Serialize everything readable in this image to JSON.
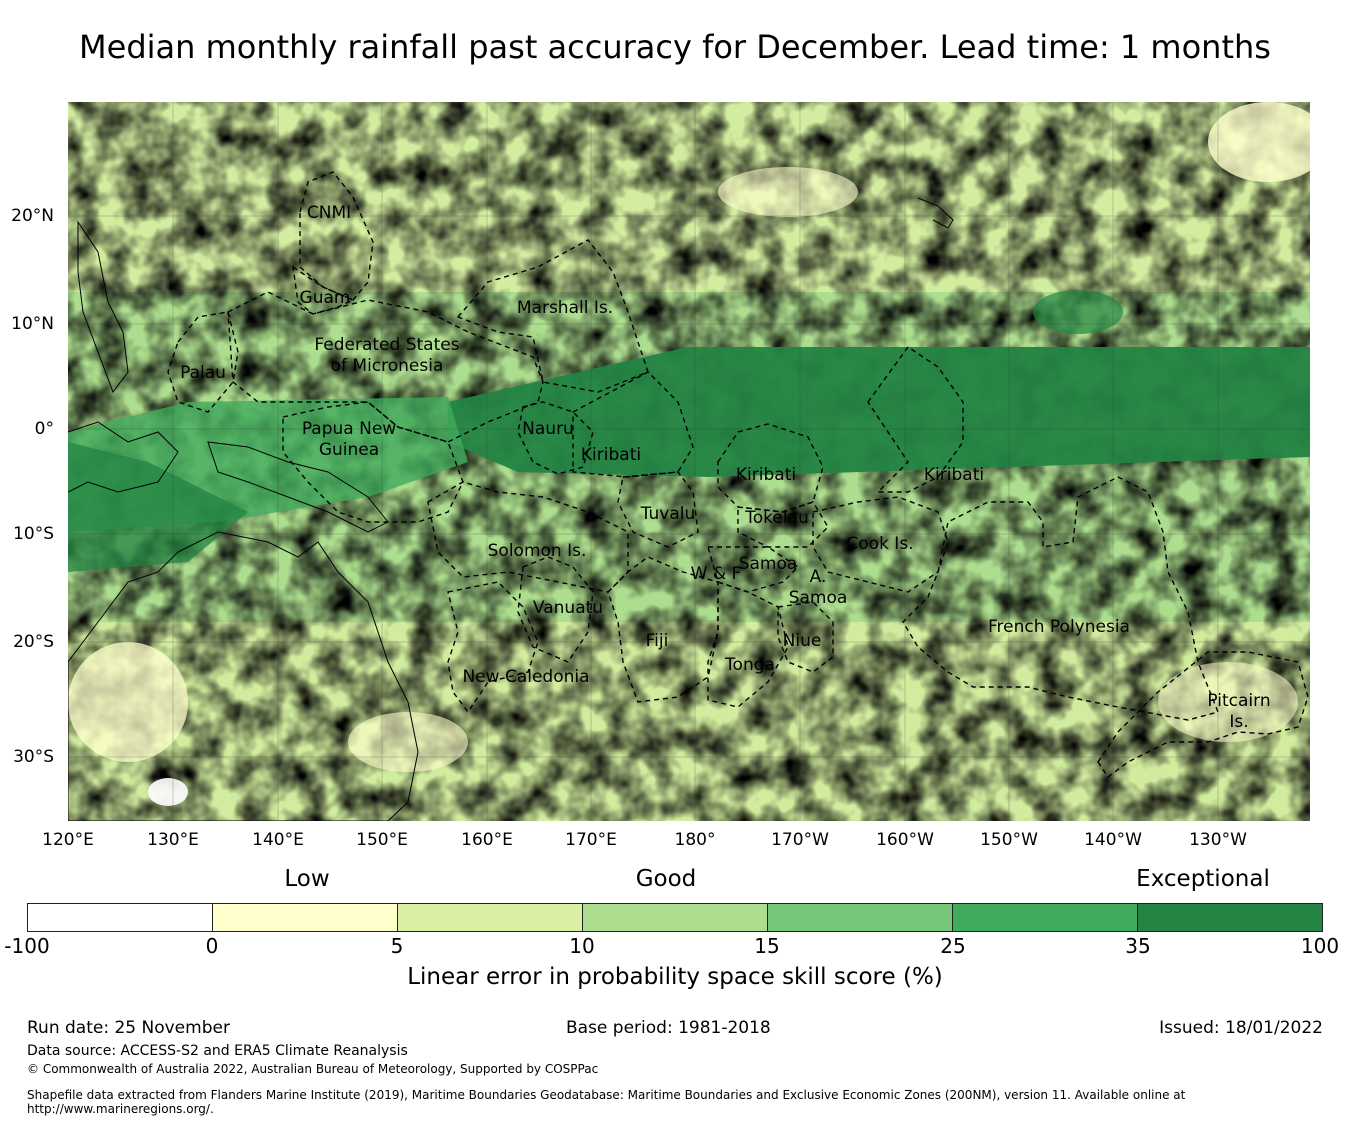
{
  "title": "Median monthly rainfall past accuracy for December. Lead time: 1 months",
  "map": {
    "lon_ticks": [
      "120°E",
      "130°E",
      "140°E",
      "150°E",
      "160°E",
      "170°E",
      "180°",
      "170°W",
      "160°W",
      "150°W",
      "140°W",
      "130°W"
    ],
    "lat_ticks": [
      "20°N",
      "10°N",
      "0°",
      "10°S",
      "20°S",
      "30°S"
    ],
    "regions": [
      "CNMI",
      "Guam",
      "Marshall Is.",
      "Federated States\nof Micronesia",
      "Palau",
      "Papua New\nGuinea",
      "Nauru",
      "Kiribati",
      "Kiribati",
      "Kiribati",
      "Tuvalu",
      "Tokelau",
      "Solomon Is.",
      "Samoa",
      "W & F",
      "A.\nSamoa",
      "Cook Is.",
      "French Polynesia",
      "Vanuatu",
      "Fiji",
      "Niue",
      "Tonga",
      "New Caledonia",
      "Pitcairn\nIs."
    ]
  },
  "legend": {
    "categories": [
      "Low",
      "Good",
      "Exceptional"
    ],
    "ticks": [
      "-100",
      "0",
      "5",
      "10",
      "15",
      "25",
      "35",
      "100"
    ],
    "colors": [
      "#ffffff",
      "#ffffcc",
      "#d9f0a3",
      "#addd8e",
      "#78c679",
      "#41ab5d",
      "#238443"
    ],
    "label": "Linear error in probability space skill score (%)"
  },
  "footer": {
    "run_date": "Run date: 25 November",
    "base_period": "Base period: 1981-2018",
    "issued": "Issued: 18/01/2022",
    "data_source": "Data source: ACCESS-S2 and ERA5 Climate Reanalysis",
    "copyright": "© Commonwealth of Australia 2022, Australian Bureau of Meteorology, Supported by COSPPac",
    "shapefile_line1": "Shapefile data extracted from Flanders Marine Institute (2019), Maritime Boundaries Geodatabase: Maritime Boundaries and Exclusive Economic Zones (200NM), version 11. Available online at",
    "shapefile_line2": "http://www.marineregions.org/."
  }
}
